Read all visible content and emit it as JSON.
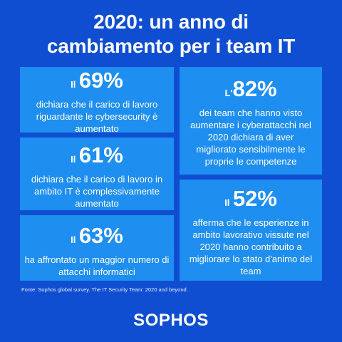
{
  "title_line1": "2020: un anno di",
  "title_line2": "cambiamento per i team IT",
  "cards": [
    {
      "prefix": "Il",
      "value": "69%",
      "description": "dichiara che il carico di lavoro riguardante le cybersecurity è aumentato"
    },
    {
      "prefix": "Il",
      "value": "61%",
      "description": "dichiara che il carico di lavoro in ambito IT è complessivamente aumentato"
    },
    {
      "prefix": "Il",
      "value": "63%",
      "description": "ha affrontato un maggior numero di attacchi informatici"
    },
    {
      "prefix": "L'",
      "value": "82%",
      "description": "dei team che hanno visto aumentare i cyberattacchi nel 2020 dichiara di aver migliorato sensibilmente le proprie le competenze"
    },
    {
      "prefix": "Il",
      "value": "52%",
      "description": "afferma che le esperienze in ambito lavorativo vissute nel 2020 hanno contribuito a migliorare lo stato d'animo del team"
    }
  ],
  "source": "Fonte: Sophos global survey. The IT Security Team: 2020 and beyond",
  "logo": "SOPHOS",
  "colors": {
    "background": "#0f4ed1",
    "card": "#1e8ef0",
    "text": "#ffffff"
  }
}
